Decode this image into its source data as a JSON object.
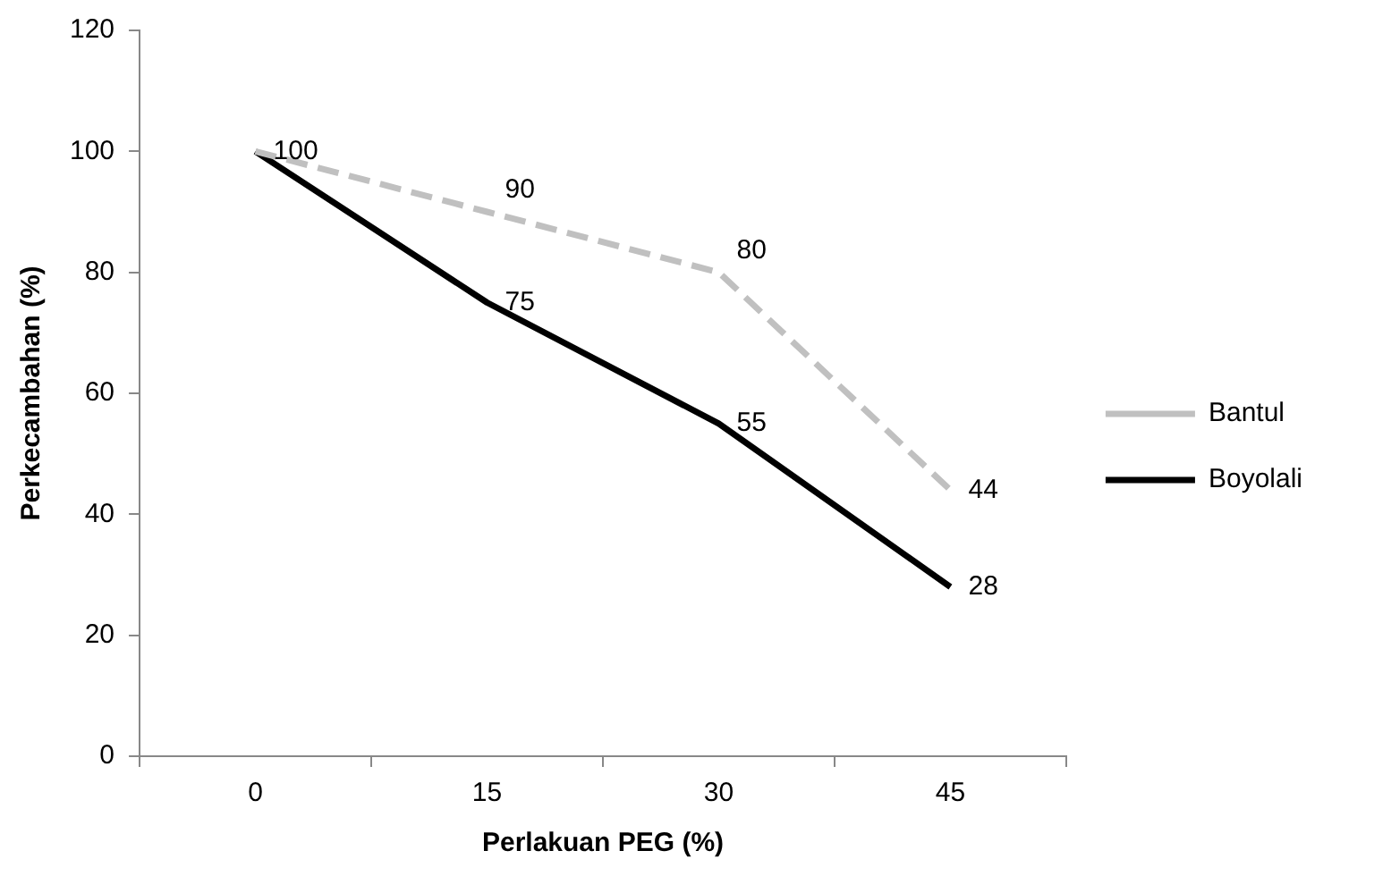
{
  "chart_data": {
    "type": "line",
    "xlabel": "Perlakuan PEG (%)",
    "ylabel": "Perkecambahan (%)",
    "categories": [
      "0",
      "15",
      "30",
      "45"
    ],
    "series": [
      {
        "name": "Bantul",
        "color": "#c0c0c0",
        "line_style": "dashed",
        "values": [
          100,
          90,
          80,
          44
        ]
      },
      {
        "name": "Boyolali",
        "color": "#000000",
        "line_style": "solid",
        "values": [
          100,
          75,
          55,
          28
        ],
        "value_labels": [
          null,
          "75",
          "55",
          "28"
        ]
      }
    ],
    "ylim": [
      0,
      120
    ],
    "yticks": [
      0,
      20,
      40,
      60,
      80,
      100,
      120
    ],
    "grid": false,
    "legend": "right",
    "marker": "none",
    "data_labels": true
  }
}
